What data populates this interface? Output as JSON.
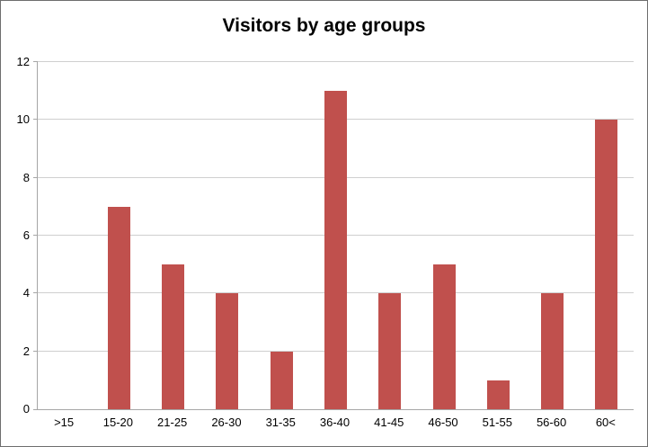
{
  "title": "Visitors by age groups",
  "chart_data": {
    "type": "bar",
    "title": "Visitors by age groups",
    "categories": [
      ">15",
      "15-20",
      "21-25",
      "26-30",
      "31-35",
      "36-40",
      "41-45",
      "46-50",
      "51-55",
      "56-60",
      "60<"
    ],
    "values": [
      0,
      7,
      5,
      4,
      2,
      11,
      4,
      5,
      1,
      4,
      10
    ],
    "xlabel": "",
    "ylabel": "",
    "ylim": [
      0,
      12
    ],
    "ytick_step": 2,
    "ytick_labels": [
      "0",
      "2",
      "4",
      "6",
      "8",
      "10",
      "12"
    ],
    "grid": true,
    "legend": false,
    "bar_color": "#C0504D",
    "gridline_color": "#cfcfcf",
    "axis_color": "#a6a6a6",
    "text_color": "#000000",
    "background_color": "#ffffff"
  }
}
